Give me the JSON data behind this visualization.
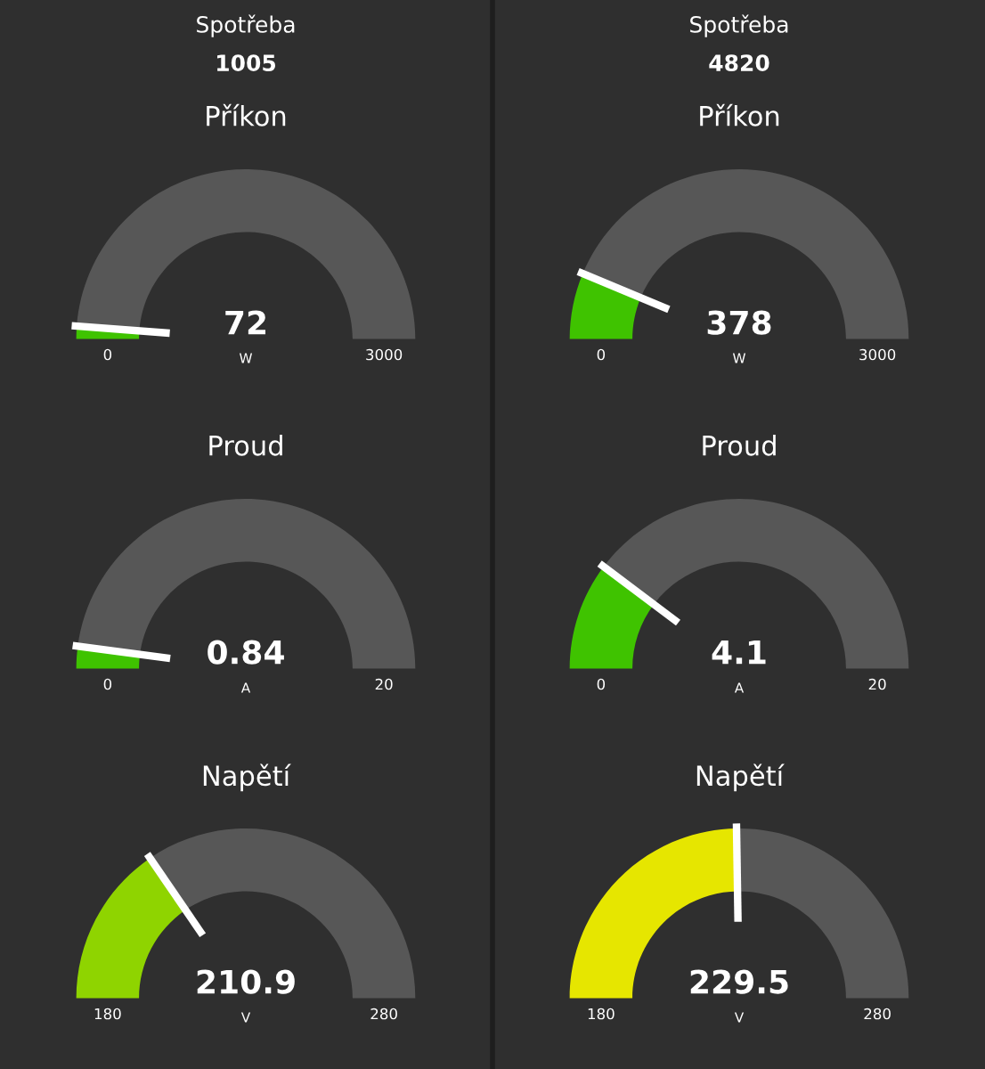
{
  "chart_data": [
    {
      "type": "other",
      "title": "Spotřeba",
      "annotations": [
        "1005"
      ]
    },
    {
      "type": "other",
      "title": "Spotřeba",
      "annotations": [
        "4820"
      ]
    },
    {
      "type": "donut",
      "title": "Příkon",
      "categories": [
        null,
        null
      ],
      "values": [
        2.4,
        97.6
      ],
      "colors": [
        "#3fc300",
        "#575757"
      ],
      "annotations": [
        "72",
        "W",
        "0",
        "3000"
      ]
    },
    {
      "type": "donut",
      "title": "Příkon",
      "categories": [
        null,
        null
      ],
      "values": [
        12.6,
        87.4
      ],
      "colors": [
        "#3fc300",
        "#575757"
      ],
      "annotations": [
        "378",
        "W",
        "0",
        "3000"
      ]
    },
    {
      "type": "donut",
      "title": "Proud",
      "categories": [
        null,
        null
      ],
      "values": [
        4.2,
        95.8
      ],
      "colors": [
        "#3fc300",
        "#575757"
      ],
      "annotations": [
        "0.84",
        "A",
        "0",
        "20"
      ]
    },
    {
      "type": "donut",
      "title": "Proud",
      "categories": [
        null,
        null
      ],
      "values": [
        20.5,
        79.5
      ],
      "colors": [
        "#3fc300",
        "#575757"
      ],
      "annotations": [
        "4.1",
        "A",
        "0",
        "20"
      ]
    },
    {
      "type": "donut",
      "title": "Napětí",
      "categories": [
        null,
        null
      ],
      "values": [
        30.9,
        69.1
      ],
      "colors": [
        "#8fd400",
        "#575757"
      ],
      "annotations": [
        "210.9",
        "V",
        "180",
        "280"
      ]
    },
    {
      "type": "donut",
      "title": "Napětí",
      "categories": [
        null,
        null
      ],
      "values": [
        49.5,
        50.5
      ],
      "colors": [
        "#e6e600",
        "#575757"
      ],
      "annotations": [
        "229.5",
        "V",
        "180",
        "280"
      ]
    }
  ]
}
